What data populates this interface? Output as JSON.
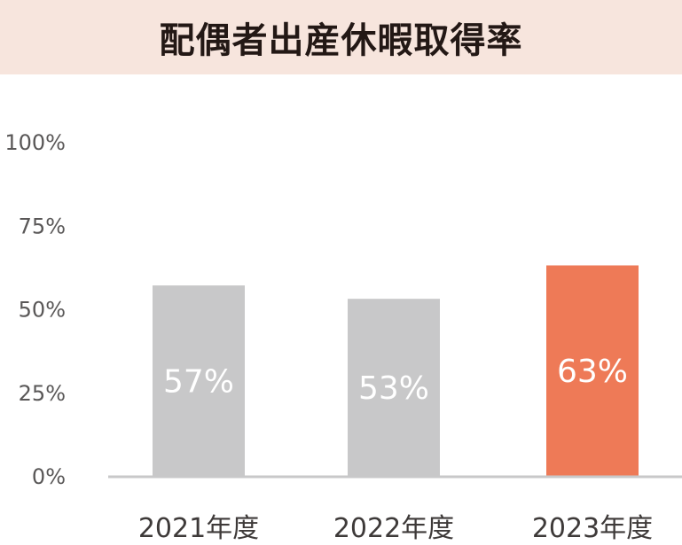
{
  "chart_data": {
    "type": "bar",
    "title": "配偶者出産休暇取得率",
    "categories": [
      "2021年度",
      "2022年度",
      "2023年度"
    ],
    "values": [
      57,
      53,
      63
    ],
    "value_labels": [
      "57%",
      "53%",
      "63%"
    ],
    "ylim": [
      0,
      100
    ],
    "yticks": [
      0,
      25,
      50,
      75,
      100
    ],
    "ytick_labels": [
      "0%",
      "25%",
      "50%",
      "75%",
      "100%"
    ],
    "grid": false,
    "bar_colors": [
      "#c8c8c9",
      "#c8c8c9",
      "#ee7a57"
    ]
  }
}
